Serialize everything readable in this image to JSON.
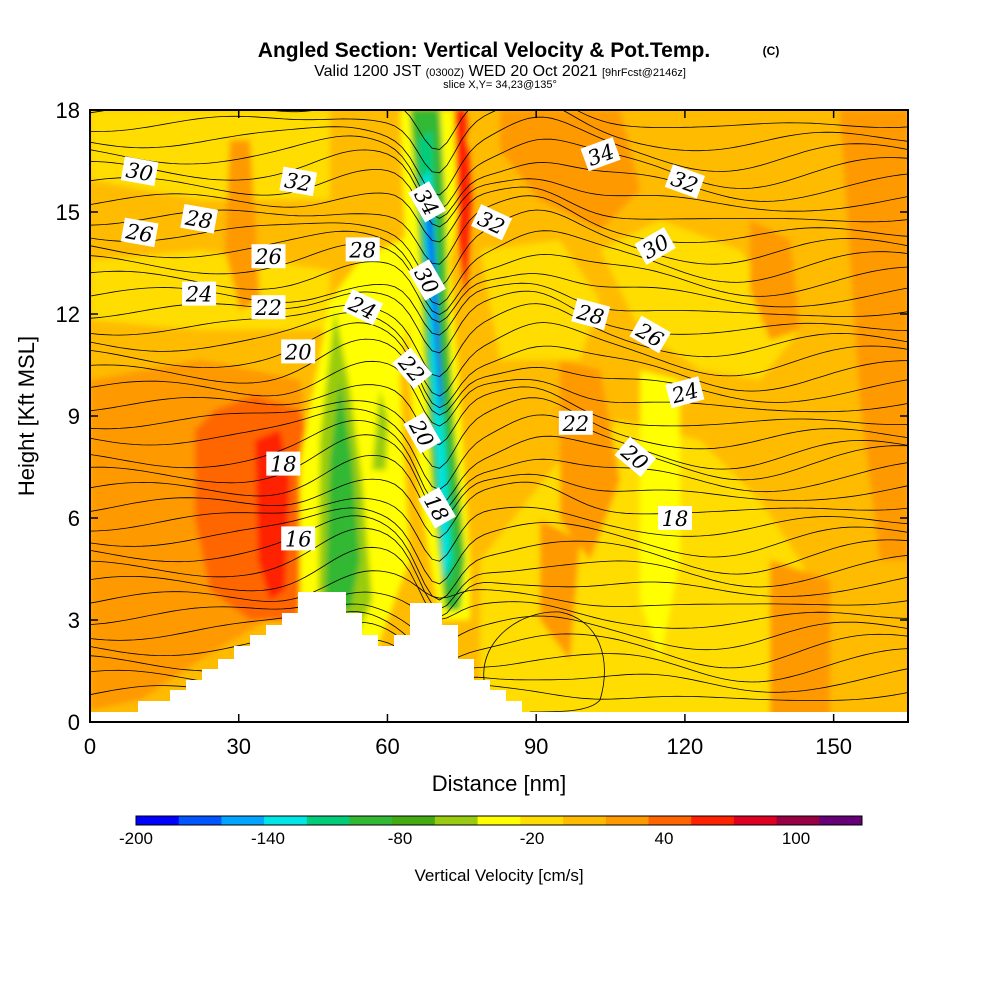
{
  "header": {
    "title": "Angled Section: Vertical Velocity & Pot.Temp.",
    "copyright": "(C)",
    "valid_prefix": "Valid 1200 JST",
    "valid_utc": "(0300Z)",
    "valid_date": "WED 20 Oct 2021",
    "forecast": "[9hrFcst@2146z]",
    "slice": "slice X,Y= 34,23@135°"
  },
  "chart_data": {
    "type": "heatmap",
    "title": "Angled Section: Vertical Velocity & Pot.Temp.",
    "xlabel": "Distance [nm]",
    "ylabel": "Height [Kft MSL]",
    "xlim": [
      0,
      165
    ],
    "ylim": [
      0,
      18
    ],
    "x_ticks": [
      "0",
      "30",
      "60",
      "90",
      "120",
      "150"
    ],
    "y_ticks": [
      "0",
      "3",
      "6",
      "9",
      "12",
      "15",
      "18"
    ],
    "grid": false,
    "colorbar": {
      "label": "Vertical Velocity [cm/s]",
      "min": -200,
      "max": 130,
      "step": 10,
      "tick_labels": [
        "-200",
        "-140",
        "-80",
        "-20",
        "40",
        "100"
      ],
      "colors": [
        "#0000ff",
        "#0055ff",
        "#00a5ff",
        "#00e6e6",
        "#00cc7a",
        "#33b833",
        "#44aa11",
        "#99cc11",
        "#ffff00",
        "#ffdd00",
        "#ffbb00",
        "#ff9900",
        "#ff6600",
        "#ff2200",
        "#dd0022",
        "#990044",
        "#660077"
      ]
    },
    "contour_labels": [
      {
        "text": "30",
        "x": 10,
        "y": 16.2,
        "angle": 10
      },
      {
        "text": "32",
        "x": 42,
        "y": 15.9,
        "angle": 10
      },
      {
        "text": "34",
        "x": 68,
        "y": 15.3,
        "angle": 60
      },
      {
        "text": "32",
        "x": 81,
        "y": 14.7,
        "angle": 25
      },
      {
        "text": "34",
        "x": 103,
        "y": 16.7,
        "angle": -20
      },
      {
        "text": "32",
        "x": 120,
        "y": 15.9,
        "angle": 20
      },
      {
        "text": "26",
        "x": 10,
        "y": 14.4,
        "angle": 10
      },
      {
        "text": "28",
        "x": 22,
        "y": 14.8,
        "angle": 10
      },
      {
        "text": "26",
        "x": 36,
        "y": 13.7,
        "angle": 0
      },
      {
        "text": "28",
        "x": 55,
        "y": 13.9,
        "angle": 0
      },
      {
        "text": "30",
        "x": 68,
        "y": 13.0,
        "angle": 60
      },
      {
        "text": "30",
        "x": 114,
        "y": 14.0,
        "angle": -30
      },
      {
        "text": "24",
        "x": 22,
        "y": 12.6,
        "angle": 0
      },
      {
        "text": "22",
        "x": 36,
        "y": 12.2,
        "angle": 0
      },
      {
        "text": "24",
        "x": 55,
        "y": 12.2,
        "angle": 25
      },
      {
        "text": "28",
        "x": 101,
        "y": 12.0,
        "angle": 15
      },
      {
        "text": "26",
        "x": 113,
        "y": 11.4,
        "angle": 30
      },
      {
        "text": "20",
        "x": 42,
        "y": 10.9,
        "angle": 0
      },
      {
        "text": "22",
        "x": 65,
        "y": 10.4,
        "angle": 50
      },
      {
        "text": "24",
        "x": 120,
        "y": 9.7,
        "angle": -15
      },
      {
        "text": "22",
        "x": 98,
        "y": 8.8,
        "angle": 0
      },
      {
        "text": "20",
        "x": 67,
        "y": 8.5,
        "angle": 60
      },
      {
        "text": "20",
        "x": 110,
        "y": 7.8,
        "angle": 40
      },
      {
        "text": "18",
        "x": 39,
        "y": 7.6,
        "angle": 0
      },
      {
        "text": "18",
        "x": 70,
        "y": 6.3,
        "angle": 60
      },
      {
        "text": "18",
        "x": 118,
        "y": 6.0,
        "angle": 0
      },
      {
        "text": "16",
        "x": 42,
        "y": 5.4,
        "angle": 0
      }
    ]
  }
}
